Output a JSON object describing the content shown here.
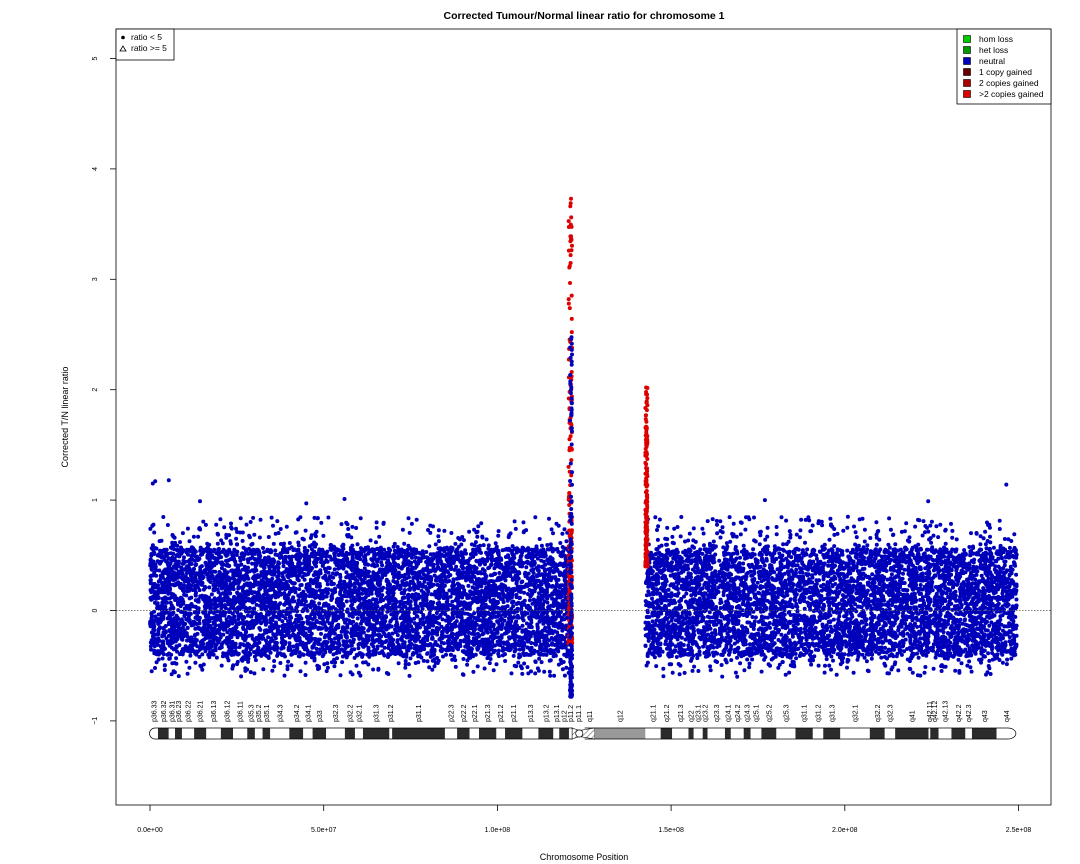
{
  "chart_data": {
    "type": "scatter",
    "title": "Corrected Tumour/Normal linear ratio for chromosome  1",
    "xlabel": "Chromosome Position",
    "ylabel": "Corrected T/N linear ratio",
    "xlim": [
      0,
      250000000
    ],
    "ylim": [
      -1.8,
      5.3
    ],
    "x_ticks": [
      0,
      50000000,
      100000000,
      150000000,
      200000000,
      250000000
    ],
    "x_tick_labels": [
      "0.0e+00",
      "5.0e+07",
      "1.0e+08",
      "1.5e+08",
      "2.0e+08",
      "2.5e+08"
    ],
    "y_ticks": [
      -1,
      0,
      1,
      2,
      3,
      4,
      5
    ],
    "y_tick_labels": [
      "−1",
      "0",
      "1",
      "2",
      "3",
      "4",
      "5"
    ],
    "reference_line": 0,
    "grid": false,
    "colors": {
      "hom_loss": "#00cc00",
      "het_loss": "#009900",
      "neutral": "#0000bb",
      "one_copy_gained": "#660000",
      "two_copies_gained": "#aa0000",
      "more_copies_gained": "#dd0000"
    },
    "legend_symbols": [
      {
        "label": "ratio < 5",
        "marker": "filled-circle"
      },
      {
        "label": "ratio >= 5",
        "marker": "triangle"
      }
    ],
    "legend_states": [
      {
        "label": "hom loss",
        "color": "#00cc00"
      },
      {
        "label": "het loss",
        "color": "#009900"
      },
      {
        "label": "neutral",
        "color": "#0000bb"
      },
      {
        "label": "1 copy gained",
        "color": "#660000"
      },
      {
        "label": "2 copies gained",
        "color": "#aa0000"
      },
      {
        "label": ">2 copies gained",
        "color": "#dd0000"
      }
    ],
    "series": [
      {
        "name": "neutral",
        "x_range": [
          0,
          121000000
        ],
        "y_core": [
          -0.4,
          0.55
        ],
        "y_extreme": [
          -0.8,
          1.17
        ]
      },
      {
        "name": "neutral",
        "x_range": [
          142600000,
          249500000
        ],
        "y_core": [
          -0.4,
          0.55
        ],
        "y_extreme": [
          -0.65,
          1.14
        ]
      },
      {
        "name": ">2 copies gained",
        "x_range": [
          120500000,
          121500000
        ],
        "y_core": [
          -0.3,
          3.73
        ]
      },
      {
        "name": ">2 copies gained",
        "x_range": [
          142600000,
          143200000
        ],
        "y_core": [
          0.4,
          2.02
        ]
      }
    ],
    "outliers": [
      {
        "x": 800000,
        "y": 1.15
      },
      {
        "x": 1500000,
        "y": 1.17
      },
      {
        "x": 5400000,
        "y": 1.18
      },
      {
        "x": 14400000,
        "y": 0.99
      },
      {
        "x": 45000000,
        "y": 0.97
      },
      {
        "x": 56000000,
        "y": 1.01
      },
      {
        "x": 121200000,
        "y": 3.73
      },
      {
        "x": 121200000,
        "y": 3.39
      },
      {
        "x": 142800000,
        "y": 2.02
      },
      {
        "x": 142900000,
        "y": 1.71
      },
      {
        "x": 142900000,
        "y": 1.64
      },
      {
        "x": 177000000,
        "y": 1.0
      },
      {
        "x": 224000000,
        "y": 0.99
      },
      {
        "x": 246500000,
        "y": 1.14
      }
    ],
    "ideogram": {
      "centromere": [
        121700000,
        125100000
      ],
      "heterochromatin": [
        125100000,
        143200000
      ],
      "bands": [
        {
          "name": "p36.33",
          "start": 0,
          "end": 2300000,
          "stain": "gneg"
        },
        {
          "name": "p36.32",
          "start": 2300000,
          "end": 5400000,
          "stain": "gpos"
        },
        {
          "name": "p36.31",
          "start": 5400000,
          "end": 7200000,
          "stain": "gneg"
        },
        {
          "name": "p36.23",
          "start": 7200000,
          "end": 9200000,
          "stain": "gpos"
        },
        {
          "name": "p36.22",
          "start": 9200000,
          "end": 12700000,
          "stain": "gneg"
        },
        {
          "name": "p36.21",
          "start": 12700000,
          "end": 16200000,
          "stain": "gpos"
        },
        {
          "name": "p36.13",
          "start": 16200000,
          "end": 20400000,
          "stain": "gneg"
        },
        {
          "name": "p36.12",
          "start": 20400000,
          "end": 23900000,
          "stain": "gpos"
        },
        {
          "name": "p36.11",
          "start": 23900000,
          "end": 28000000,
          "stain": "gneg"
        },
        {
          "name": "p35.3",
          "start": 28000000,
          "end": 30200000,
          "stain": "gpos"
        },
        {
          "name": "p35.2",
          "start": 30200000,
          "end": 32400000,
          "stain": "gneg"
        },
        {
          "name": "p35.1",
          "start": 32400000,
          "end": 34600000,
          "stain": "gpos"
        },
        {
          "name": "p34.3",
          "start": 34600000,
          "end": 40100000,
          "stain": "gneg"
        },
        {
          "name": "p34.2",
          "start": 40100000,
          "end": 44100000,
          "stain": "gpos"
        },
        {
          "name": "p34.1",
          "start": 44100000,
          "end": 46800000,
          "stain": "gneg"
        },
        {
          "name": "p33",
          "start": 46800000,
          "end": 50700000,
          "stain": "gpos"
        },
        {
          "name": "p32.3",
          "start": 50700000,
          "end": 56100000,
          "stain": "gneg"
        },
        {
          "name": "p32.2",
          "start": 56100000,
          "end": 59000000,
          "stain": "gpos"
        },
        {
          "name": "p32.1",
          "start": 59000000,
          "end": 61300000,
          "stain": "gneg"
        },
        {
          "name": "p31.3",
          "start": 61300000,
          "end": 68900000,
          "stain": "gpos"
        },
        {
          "name": "p31.2",
          "start": 68900000,
          "end": 69700000,
          "stain": "gneg"
        },
        {
          "name": "p31.1",
          "start": 69700000,
          "end": 84900000,
          "stain": "gpos"
        },
        {
          "name": "p22.3",
          "start": 84900000,
          "end": 88400000,
          "stain": "gneg"
        },
        {
          "name": "p22.2",
          "start": 88400000,
          "end": 92000000,
          "stain": "gpos"
        },
        {
          "name": "p22.1",
          "start": 92000000,
          "end": 94700000,
          "stain": "gneg"
        },
        {
          "name": "p21.3",
          "start": 94700000,
          "end": 99700000,
          "stain": "gpos"
        },
        {
          "name": "p21.2",
          "start": 99700000,
          "end": 102200000,
          "stain": "gneg"
        },
        {
          "name": "p21.1",
          "start": 102200000,
          "end": 107200000,
          "stain": "gpos"
        },
        {
          "name": "p13.3",
          "start": 107200000,
          "end": 111800000,
          "stain": "gneg"
        },
        {
          "name": "p13.2",
          "start": 111800000,
          "end": 116100000,
          "stain": "gpos"
        },
        {
          "name": "p13.1",
          "start": 116100000,
          "end": 117800000,
          "stain": "gneg"
        },
        {
          "name": "p12",
          "start": 117800000,
          "end": 120600000,
          "stain": "gpos"
        },
        {
          "name": "p11.2",
          "start": 120600000,
          "end": 121500000,
          "stain": "gneg"
        },
        {
          "name": "p11.1",
          "start": 121500000,
          "end": 125100000,
          "stain": "acen"
        },
        {
          "name": "q11",
          "start": 125100000,
          "end": 128000000,
          "stain": "acen"
        },
        {
          "name": "q12",
          "start": 128000000,
          "end": 142600000,
          "stain": "gvar"
        },
        {
          "name": "q21.1",
          "start": 142600000,
          "end": 147000000,
          "stain": "gneg"
        },
        {
          "name": "q21.2",
          "start": 147000000,
          "end": 150300000,
          "stain": "gpos"
        },
        {
          "name": "q21.3",
          "start": 150300000,
          "end": 155000000,
          "stain": "gneg"
        },
        {
          "name": "q22",
          "start": 155000000,
          "end": 156500000,
          "stain": "gpos"
        },
        {
          "name": "q23.1",
          "start": 156500000,
          "end": 159100000,
          "stain": "gneg"
        },
        {
          "name": "q23.2",
          "start": 159100000,
          "end": 160500000,
          "stain": "gpos"
        },
        {
          "name": "q23.3",
          "start": 160500000,
          "end": 165500000,
          "stain": "gneg"
        },
        {
          "name": "q24.1",
          "start": 165500000,
          "end": 167200000,
          "stain": "gpos"
        },
        {
          "name": "q24.2",
          "start": 167200000,
          "end": 170900000,
          "stain": "gneg"
        },
        {
          "name": "q24.3",
          "start": 170900000,
          "end": 172900000,
          "stain": "gpos"
        },
        {
          "name": "q25.1",
          "start": 172900000,
          "end": 176000000,
          "stain": "gneg"
        },
        {
          "name": "q25.2",
          "start": 176000000,
          "end": 180300000,
          "stain": "gpos"
        },
        {
          "name": "q25.3",
          "start": 180300000,
          "end": 185800000,
          "stain": "gneg"
        },
        {
          "name": "q31.1",
          "start": 185800000,
          "end": 190800000,
          "stain": "gpos"
        },
        {
          "name": "q31.2",
          "start": 190800000,
          "end": 193800000,
          "stain": "gneg"
        },
        {
          "name": "q31.3",
          "start": 193800000,
          "end": 198700000,
          "stain": "gpos"
        },
        {
          "name": "q32.1",
          "start": 198700000,
          "end": 207200000,
          "stain": "gneg"
        },
        {
          "name": "q32.2",
          "start": 207200000,
          "end": 211500000,
          "stain": "gpos"
        },
        {
          "name": "q32.3",
          "start": 211500000,
          "end": 214500000,
          "stain": "gneg"
        },
        {
          "name": "q41",
          "start": 214500000,
          "end": 224100000,
          "stain": "gpos"
        },
        {
          "name": "q42.11",
          "start": 224100000,
          "end": 224600000,
          "stain": "gneg"
        },
        {
          "name": "q42.12",
          "start": 224600000,
          "end": 227000000,
          "stain": "gpos"
        },
        {
          "name": "q42.13",
          "start": 227000000,
          "end": 230700000,
          "stain": "gneg"
        },
        {
          "name": "q42.2",
          "start": 230700000,
          "end": 234700000,
          "stain": "gpos"
        },
        {
          "name": "q42.3",
          "start": 234700000,
          "end": 236600000,
          "stain": "gneg"
        },
        {
          "name": "q43",
          "start": 236600000,
          "end": 243700000,
          "stain": "gpos"
        },
        {
          "name": "q44",
          "start": 243700000,
          "end": 249250621,
          "stain": "gneg"
        }
      ]
    }
  }
}
